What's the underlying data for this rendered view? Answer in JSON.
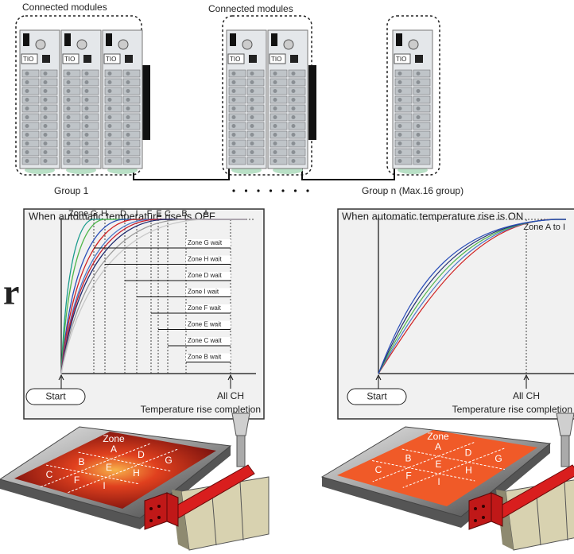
{
  "modules": {
    "groups": [
      {
        "label": "Connected modules",
        "caption": "Group 1"
      },
      {
        "label": "Connected modules"
      },
      {
        "caption": "Group n (Max.16 group)"
      }
    ],
    "module_label": "TIO"
  },
  "side_text": "r",
  "panels": [
    {
      "title": "When automatic temperature rise is OFF.",
      "zone_prefix": "Zone",
      "zones": [
        "G",
        "H",
        "D",
        "I",
        "F",
        "E",
        "C",
        "B",
        "A"
      ],
      "waits": [
        "Zone G wait",
        "Zone H wait",
        "Zone D wait",
        "Zone I wait",
        "Zone F wait",
        "Zone E wait",
        "Zone C wait",
        "Zone B wait"
      ],
      "start": "Start",
      "all_ch": "All CH",
      "completion": "Temperature rise completion"
    },
    {
      "title": "When automatic temperature rise is ON",
      "zone_label": "Zone A to I",
      "start": "Start",
      "all_ch": "All CH",
      "completion": "Temperature rise completion"
    }
  ],
  "plates": [
    {
      "title": "Zone",
      "zones": [
        "A",
        "B",
        "C",
        "D",
        "E",
        "F",
        "G",
        "H",
        "I"
      ]
    },
    {
      "title": "Zone",
      "zones": [
        "A",
        "B",
        "C",
        "D",
        "E",
        "F",
        "G",
        "H",
        "I"
      ]
    }
  ]
}
